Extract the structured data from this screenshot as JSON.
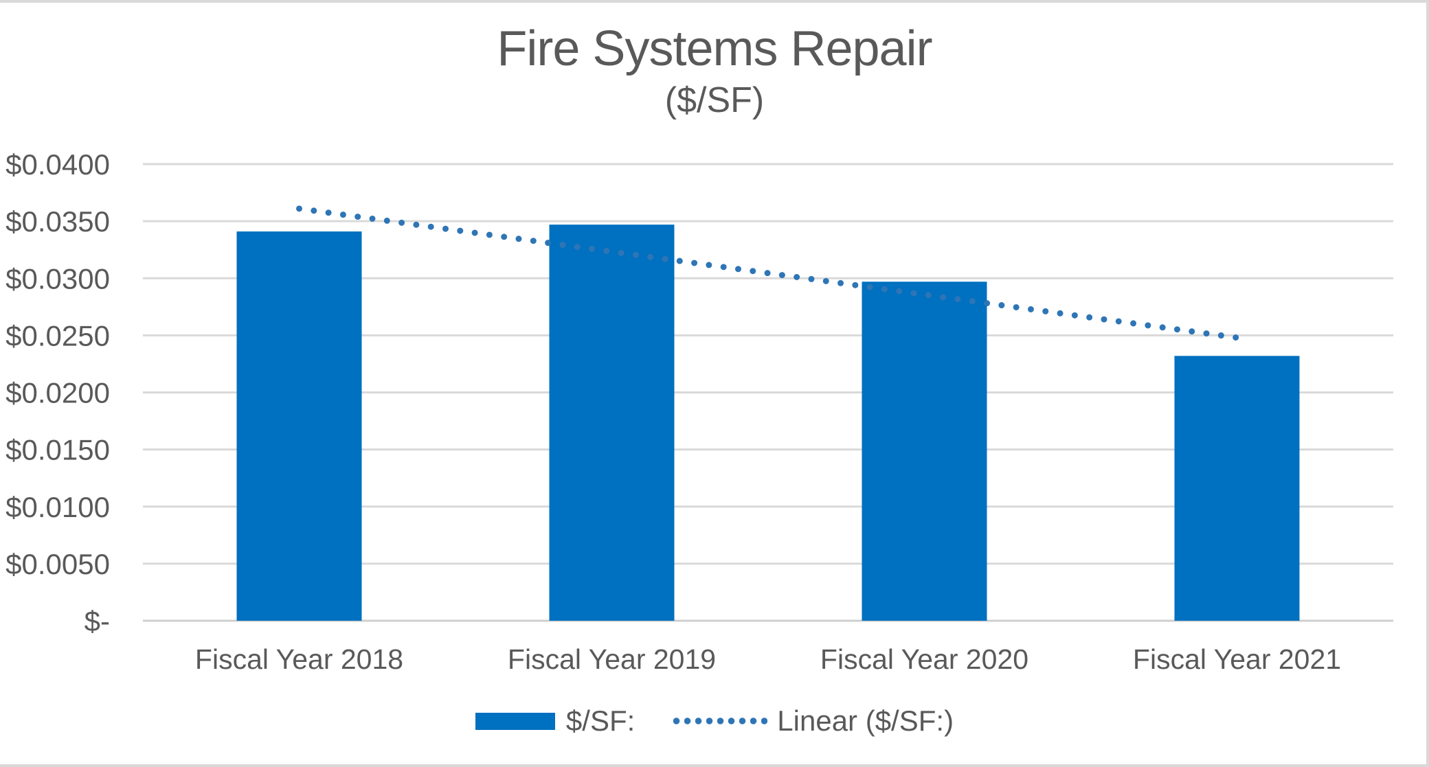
{
  "chart_data": {
    "type": "bar",
    "title": "Fire Systems Repair",
    "subtitle": "($/SF)",
    "categories": [
      "Fiscal Year 2018",
      "Fiscal Year 2019",
      "Fiscal Year 2020",
      "Fiscal Year 2021"
    ],
    "series": [
      {
        "name": "$/SF:",
        "values": [
          0.0341,
          0.0347,
          0.0297,
          0.0232
        ],
        "color": "#0070C0"
      }
    ],
    "trendline": {
      "name": "Linear ($/SF:)",
      "type": "linear",
      "start_value": 0.0361,
      "end_value": 0.0248,
      "color": "#2E75B6",
      "style": "dotted"
    },
    "y_axis": {
      "min": 0,
      "max": 0.04,
      "tick_step": 0.005,
      "tick_labels": [
        "$0.0400",
        "$0.0350",
        "$0.0300",
        "$0.0250",
        "$0.0200",
        "$0.0150",
        "$0.0100",
        "$0.0050",
        "$-"
      ]
    },
    "x_axis": {
      "labels": [
        "Fiscal Year 2018",
        "Fiscal Year 2019",
        "Fiscal Year 2020",
        "Fiscal Year 2021"
      ]
    },
    "grid": true,
    "legend_position": "bottom",
    "colors": {
      "gridline": "#D9D9D9",
      "axis_line": "#CFCFCF",
      "text": "#595959"
    }
  }
}
